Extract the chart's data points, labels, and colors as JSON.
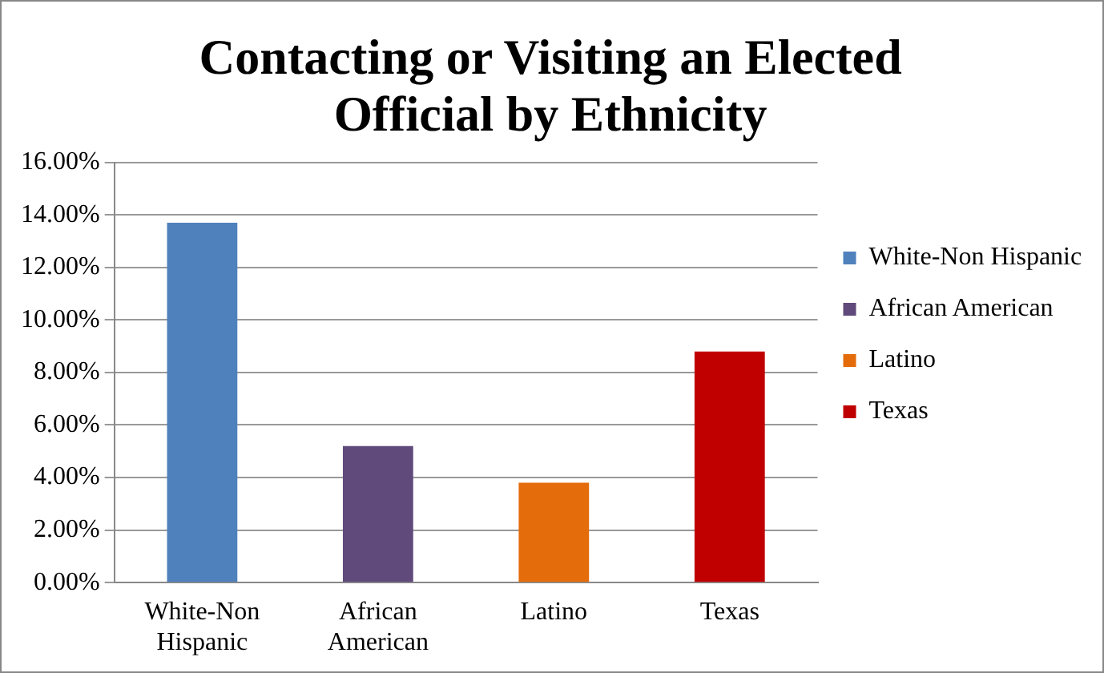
{
  "chart_data": {
    "type": "bar",
    "title": "Contacting or Visiting an Elected Official by Ethnicity",
    "categories": [
      "White-Non Hispanic",
      "African American",
      "Latino",
      "Texas"
    ],
    "series": [
      {
        "name": "White-Non Hispanic",
        "color": "#4f81bd",
        "values": [
          13.7,
          null,
          null,
          null
        ]
      },
      {
        "name": "African American",
        "color": "#604a7b",
        "values": [
          null,
          5.2,
          null,
          null
        ]
      },
      {
        "name": "Latino",
        "color": "#e46c0a",
        "values": [
          null,
          null,
          3.8,
          null
        ]
      },
      {
        "name": "Texas",
        "color": "#c00000",
        "values": [
          null,
          null,
          null,
          8.8
        ]
      }
    ],
    "ylim": [
      0,
      16
    ],
    "yticks": [
      {
        "value": 0,
        "label": "0.00%"
      },
      {
        "value": 2,
        "label": "2.00%"
      },
      {
        "value": 4,
        "label": "4.00%"
      },
      {
        "value": 6,
        "label": "6.00%"
      },
      {
        "value": 8,
        "label": "8.00%"
      },
      {
        "value": 10,
        "label": "10.00%"
      },
      {
        "value": 12,
        "label": "12.00%"
      },
      {
        "value": 14,
        "label": "14.00%"
      },
      {
        "value": 16,
        "label": "16.00%"
      }
    ],
    "grid": "y",
    "legend": "right"
  }
}
